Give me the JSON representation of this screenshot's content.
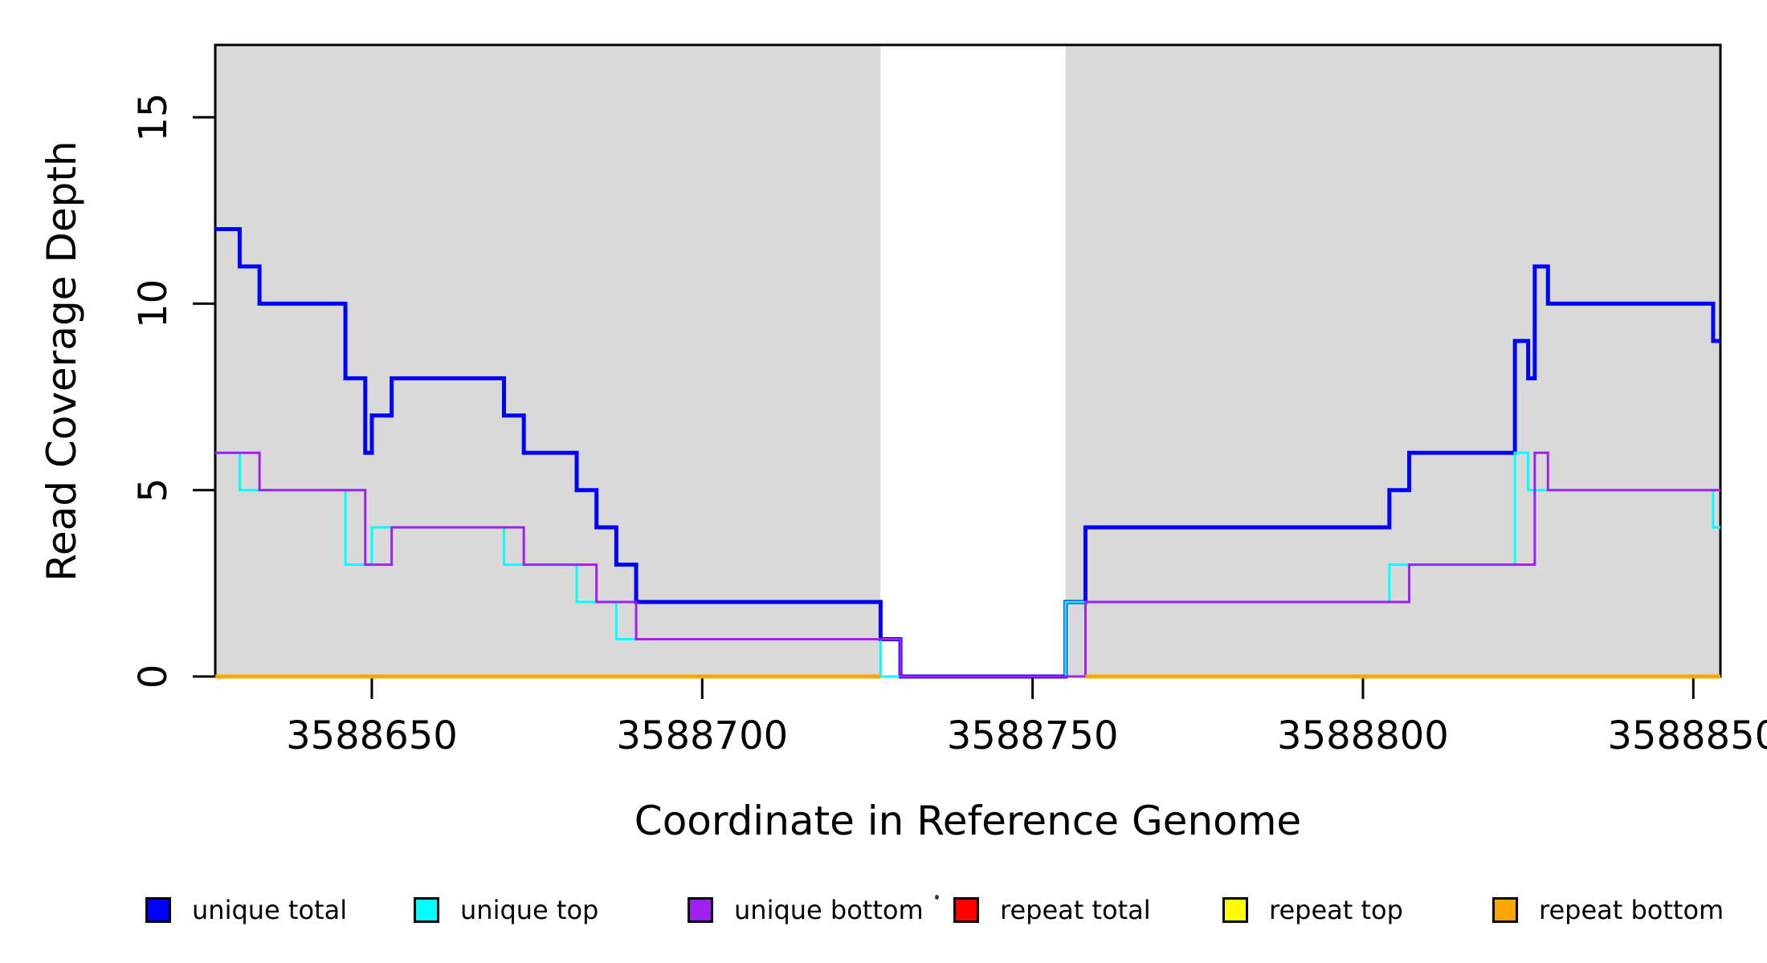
{
  "figure": {
    "background": "#FFFFFF",
    "plot_background_shaded": "#D9D9D9"
  },
  "chart_data": {
    "type": "line",
    "step": "post",
    "title": "",
    "xlabel": "Coordinate in Reference Genome",
    "ylabel": "Read Coverage Depth",
    "grid": false,
    "legend_position": "bottom",
    "x": {
      "domain": [
        3588626.3,
        3588854.1
      ],
      "ticks": [
        {
          "value": 3588650,
          "label": "3588650"
        },
        {
          "value": 3588700,
          "label": "3588700"
        },
        {
          "value": 3588750,
          "label": "3588750"
        },
        {
          "value": 3588800,
          "label": "3588800"
        },
        {
          "value": 3588850,
          "label": "3588850"
        }
      ]
    },
    "y": {
      "domain": [
        0,
        16.94
      ],
      "ticks": [
        {
          "value": 0,
          "label": "0"
        },
        {
          "value": 5,
          "label": "5"
        },
        {
          "value": 10,
          "label": "10"
        },
        {
          "value": 15,
          "label": "15"
        }
      ]
    },
    "shaded_regions": [
      {
        "from": 3588626.3,
        "to": 3588727,
        "color": "#D9D9D9"
      },
      {
        "from": 3588755,
        "to": 3588854.1,
        "color": "#D9D9D9"
      }
    ],
    "series": [
      {
        "name": "unique total",
        "color": "#0000FF",
        "line_width": 5,
        "steps": [
          [
            3588626.3,
            12
          ],
          [
            3588630,
            11
          ],
          [
            3588633,
            10
          ],
          [
            3588646,
            8
          ],
          [
            3588649,
            6
          ],
          [
            3588650,
            7
          ],
          [
            3588653,
            8
          ],
          [
            3588670,
            7
          ],
          [
            3588673,
            6
          ],
          [
            3588681,
            5
          ],
          [
            3588684,
            4
          ],
          [
            3588687,
            3
          ],
          [
            3588690,
            2
          ],
          [
            3588727,
            1
          ],
          [
            3588730,
            0
          ],
          [
            3588755,
            2
          ],
          [
            3588758,
            4
          ],
          [
            3588804,
            5
          ],
          [
            3588807,
            6
          ],
          [
            3588823,
            9
          ],
          [
            3588825,
            8
          ],
          [
            3588826,
            11
          ],
          [
            3588828,
            10
          ],
          [
            3588853,
            9
          ]
        ],
        "x_end": 3588854.1
      },
      {
        "name": "unique top",
        "color": "#00FFFF",
        "line_width": 3,
        "steps": [
          [
            3588626.3,
            6
          ],
          [
            3588630,
            5
          ],
          [
            3588646,
            3
          ],
          [
            3588650,
            4
          ],
          [
            3588670,
            3
          ],
          [
            3588681,
            2
          ],
          [
            3588687,
            1
          ],
          [
            3588727,
            0
          ],
          [
            3588755,
            2
          ],
          [
            3588804,
            3
          ],
          [
            3588823,
            6
          ],
          [
            3588825,
            5
          ],
          [
            3588853,
            4
          ]
        ],
        "x_end": 3588854.1
      },
      {
        "name": "unique bottom",
        "color": "#A020F0",
        "line_width": 3,
        "steps": [
          [
            3588626.3,
            6
          ],
          [
            3588633,
            5
          ],
          [
            3588649,
            3
          ],
          [
            3588653,
            4
          ],
          [
            3588673,
            3
          ],
          [
            3588684,
            2
          ],
          [
            3588690,
            1
          ],
          [
            3588730,
            0
          ],
          [
            3588758,
            2
          ],
          [
            3588807,
            3
          ],
          [
            3588826,
            6
          ],
          [
            3588828,
            5
          ]
        ],
        "x_end": 3588854.1
      },
      {
        "name": "repeat total",
        "color": "#FF0000",
        "line_width": 5,
        "segments": [
          {
            "from": 3588626.3,
            "to": 3588727,
            "value": 0
          },
          {
            "from": 3588758,
            "to": 3588854.1,
            "value": 0
          }
        ]
      },
      {
        "name": "repeat top",
        "color": "#FFFF00",
        "line_width": 5,
        "segments": [
          {
            "from": 3588626.3,
            "to": 3588727,
            "value": 0
          },
          {
            "from": 3588758,
            "to": 3588854.1,
            "value": 0
          }
        ]
      },
      {
        "name": "repeat bottom",
        "color": "#FFA500",
        "line_width": 5,
        "segments": [
          {
            "from": 3588626.3,
            "to": 3588727,
            "value": 0
          },
          {
            "from": 3588758,
            "to": 3588854.1,
            "value": 0
          }
        ]
      }
    ]
  },
  "legend": {
    "items": [
      {
        "label": "unique total",
        "color": "#0000FF"
      },
      {
        "label": "unique top",
        "color": "#00FFFF"
      },
      {
        "label": "unique bottom",
        "color": "#A020F0"
      },
      {
        "label": "repeat total",
        "color": "#FF0000"
      },
      {
        "label": "repeat top",
        "color": "#FFFF00"
      },
      {
        "label": "repeat bottom",
        "color": "#FFA500"
      }
    ]
  }
}
